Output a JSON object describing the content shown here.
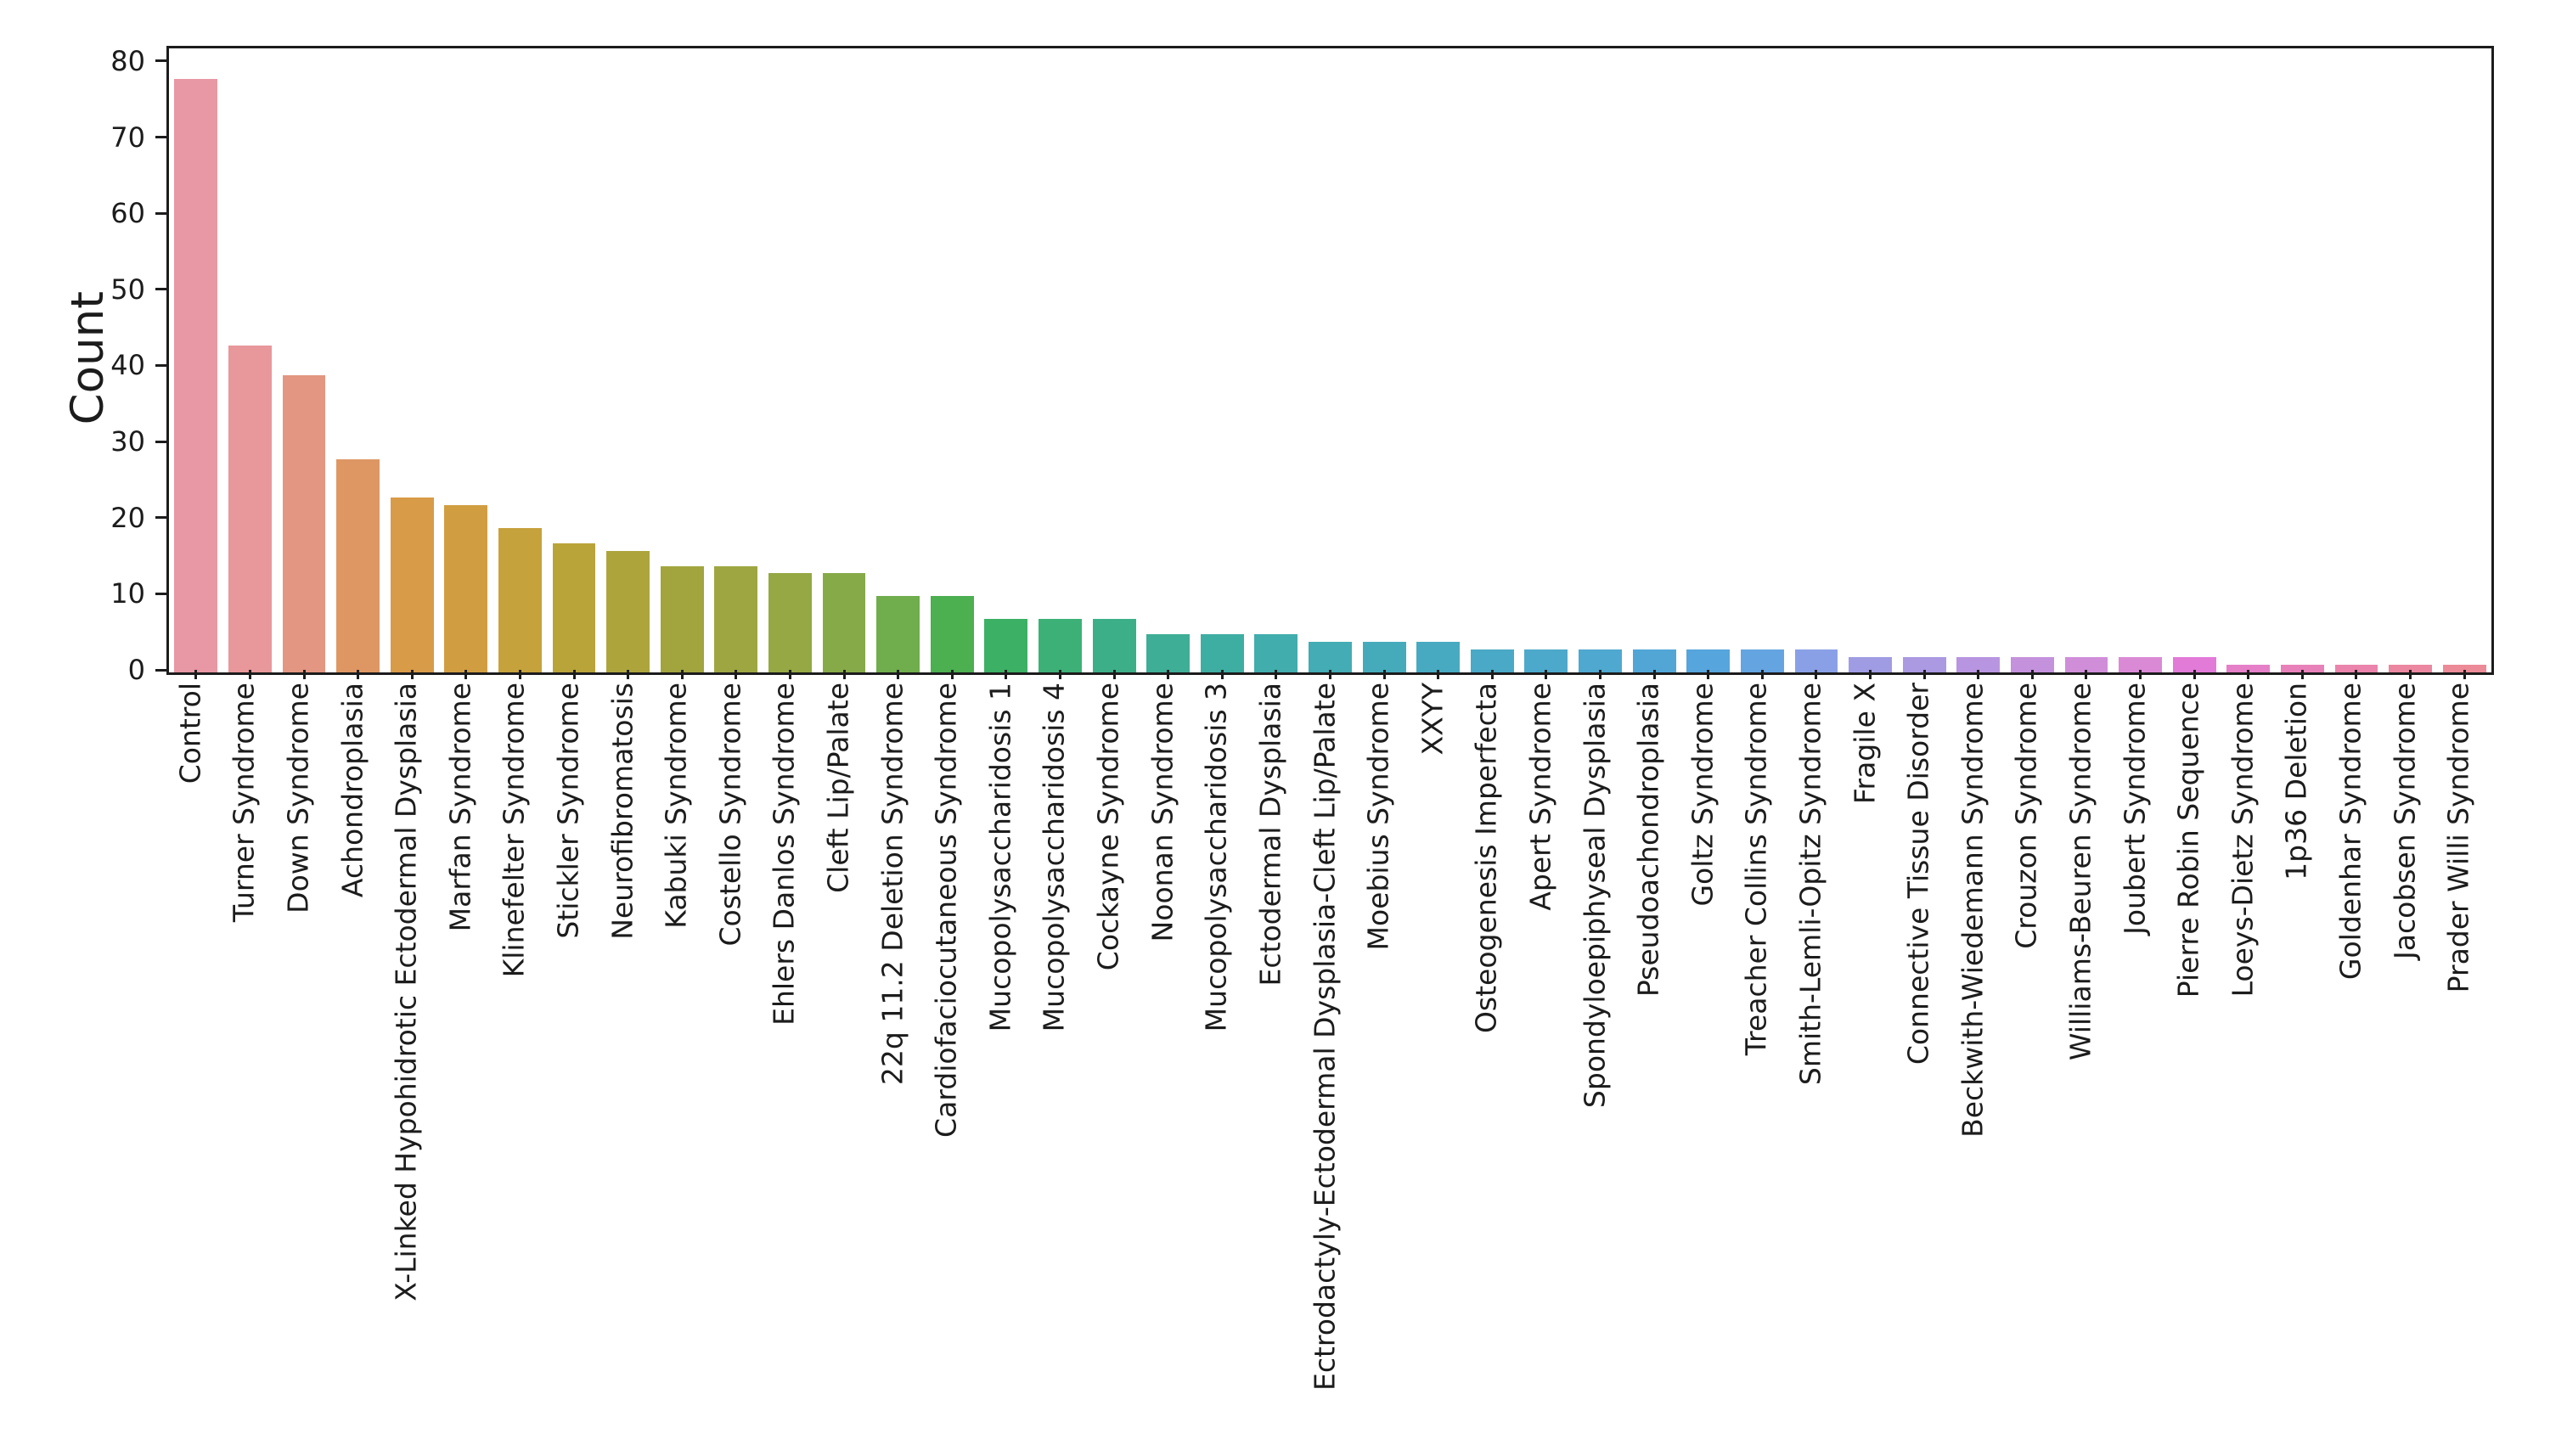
{
  "figure": {
    "background": "#ffffff",
    "text_color": "#1c1c1c",
    "spine_color": "#1c1c1c"
  },
  "chart_data": {
    "type": "bar",
    "title": "",
    "xlabel": "",
    "ylabel": "Count",
    "grid": false,
    "legend": null,
    "x_tick_rotation_deg": 90,
    "ylim": [
      0,
      82
    ],
    "yticks": [
      0,
      10,
      20,
      30,
      40,
      50,
      60,
      70,
      80
    ],
    "categories": [
      "Control",
      "Turner Syndrome",
      "Down Syndrome",
      "Achondroplasia",
      "X-Linked Hypohidrotic Ectodermal Dysplasia",
      "Marfan Syndrome",
      "Klinefelter Syndrome",
      "Stickler Syndrome",
      "Neurofibromatosis",
      "Kabuki Syndrome",
      "Costello Syndrome",
      "Ehlers Danlos Syndrome",
      "Cleft Lip/Palate",
      "22q 11.2 Deletion Syndrome",
      "Cardiofaciocutaneous Syndrome",
      "Mucopolysaccharidosis 1",
      "Mucopolysaccharidosis 4",
      "Cockayne Syndrome",
      "Noonan Syndrome",
      "Mucopolysaccharidosis 3",
      "Ectodermal Dysplasia",
      "Ectrodactyly-Ectodermal Dysplasia-Cleft Lip/Palate",
      "Moebius Syndrome",
      "XXYY",
      "Osteogenesis Imperfecta",
      "Apert Syndrome",
      "Spondyloepiphyseal Dysplasia",
      "Pseudoachondroplasia",
      "Goltz Syndrome",
      "Treacher Collins Syndrome",
      "Smith-Lemli-Opitz Syndrome",
      "Fragile X",
      "Connective Tissue Disorder",
      "Beckwith-Wiedemann Syndrome",
      "Crouzon Syndrome",
      "Williams-Beuren Syndrome",
      "Joubert Syndrome",
      "Pierre Robin Sequence",
      "Loeys-Dietz Syndrome",
      "1p36 Deletion",
      "Goldenhar Syndrome",
      "Jacobsen Syndrome",
      "Prader Willi Syndrome"
    ],
    "values": [
      78,
      43,
      39,
      28,
      23,
      22,
      19,
      17,
      16,
      14,
      14,
      13,
      13,
      10,
      10,
      7,
      7,
      7,
      5,
      5,
      5,
      4,
      4,
      4,
      3,
      3,
      3,
      3,
      3,
      3,
      3,
      2,
      2,
      2,
      2,
      2,
      2,
      2,
      1,
      1,
      1,
      1,
      1
    ],
    "bar_colors": [
      "#e897a4",
      "#e8979a",
      "#e39681",
      "#de9763",
      "#d89b48",
      "#d09e41",
      "#c6a23c",
      "#b9a43a",
      "#ada53c",
      "#a2a53e",
      "#9ea641",
      "#95a844",
      "#87aa48",
      "#70ad4c",
      "#4caf50",
      "#3cb064",
      "#3db078",
      "#3daf88",
      "#3eae96",
      "#3faea2",
      "#41adac",
      "#43acb4",
      "#45abbb",
      "#47aac1",
      "#4aa9c6",
      "#4da9cb",
      "#4fa8d0",
      "#52a6d6",
      "#56a5dc",
      "#64a4e1",
      "#8aa0e6",
      "#a09ce3",
      "#ab99e2",
      "#b895e0",
      "#c492dc",
      "#d08ed9",
      "#da8ad5",
      "#e27ad8",
      "#e57fc7",
      "#e881b9",
      "#ea84ac",
      "#eb87a0",
      "#ec8a97"
    ]
  }
}
